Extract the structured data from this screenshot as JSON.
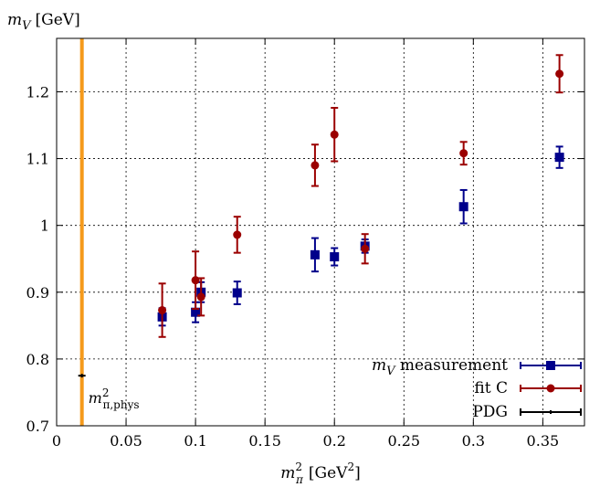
{
  "chart_data": {
    "type": "scatter",
    "xlabel_main": "m",
    "xlabel_sub": "π",
    "xlabel_sup": "2",
    "xlabel_unit_pre": "[GeV",
    "xlabel_unit_sup": "2",
    "xlabel_unit_post": "]",
    "ylabel_main": "m",
    "ylabel_sub": "V",
    "ylabel_unit": "[GeV]",
    "xlim": [
      0,
      0.38
    ],
    "ylim": [
      0.7,
      1.28
    ],
    "xticks": [
      0,
      0.05,
      0.1,
      0.15,
      0.2,
      0.25,
      0.3,
      0.35
    ],
    "xtick_labels": [
      "0",
      "0.05",
      "0.1",
      "0.15",
      "0.2",
      "0.25",
      "0.3",
      "0.35"
    ],
    "yticks": [
      0.7,
      0.8,
      0.9,
      1.0,
      1.1,
      1.2
    ],
    "ytick_labels": [
      "0.7",
      "0.8",
      "0.9",
      "1",
      "1.1",
      "1.2"
    ],
    "grid": true,
    "legend_position": "bottom-right",
    "series": [
      {
        "name": "m_V measurement",
        "legend_main": "m",
        "legend_sub": "V",
        "legend_rest": " measurement",
        "color": "#00008b",
        "marker": "square",
        "points": [
          {
            "x": 0.076,
            "y": 0.863,
            "err": 0.013
          },
          {
            "x": 0.1,
            "y": 0.87,
            "err": 0.015
          },
          {
            "x": 0.104,
            "y": 0.9,
            "err": 0.015
          },
          {
            "x": 0.13,
            "y": 0.899,
            "err": 0.017
          },
          {
            "x": 0.186,
            "y": 0.956,
            "err": 0.025
          },
          {
            "x": 0.2,
            "y": 0.953,
            "err": 0.013
          },
          {
            "x": 0.222,
            "y": 0.969,
            "err": 0.01
          },
          {
            "x": 0.293,
            "y": 1.028,
            "err": 0.025
          },
          {
            "x": 0.362,
            "y": 1.102,
            "err": 0.016
          }
        ]
      },
      {
        "name": "fit C",
        "legend_main": "fit C",
        "color": "#9b0000",
        "marker": "circle",
        "points": [
          {
            "x": 0.076,
            "y": 0.873,
            "err": 0.04
          },
          {
            "x": 0.1,
            "y": 0.918,
            "err": 0.043
          },
          {
            "x": 0.104,
            "y": 0.893,
            "err": 0.028
          },
          {
            "x": 0.13,
            "y": 0.986,
            "err": 0.027
          },
          {
            "x": 0.186,
            "y": 1.09,
            "err": 0.031
          },
          {
            "x": 0.2,
            "y": 1.136,
            "err": 0.04
          },
          {
            "x": 0.222,
            "y": 0.965,
            "err": 0.022
          },
          {
            "x": 0.293,
            "y": 1.108,
            "err": 0.017
          },
          {
            "x": 0.362,
            "y": 1.227,
            "err": 0.028
          }
        ]
      },
      {
        "name": "PDG",
        "legend_main": "PDG",
        "color": "#000000",
        "marker": "cross",
        "points": [
          {
            "x": 0.0182,
            "y": 0.775,
            "err": 0.0
          }
        ]
      }
    ],
    "vertical_line": {
      "x": 0.0182,
      "color": "#f59a1b"
    },
    "annotation": {
      "main": "m",
      "sub": "π,phys",
      "sup": "2",
      "x": 0.0182,
      "y": 0.775
    }
  }
}
